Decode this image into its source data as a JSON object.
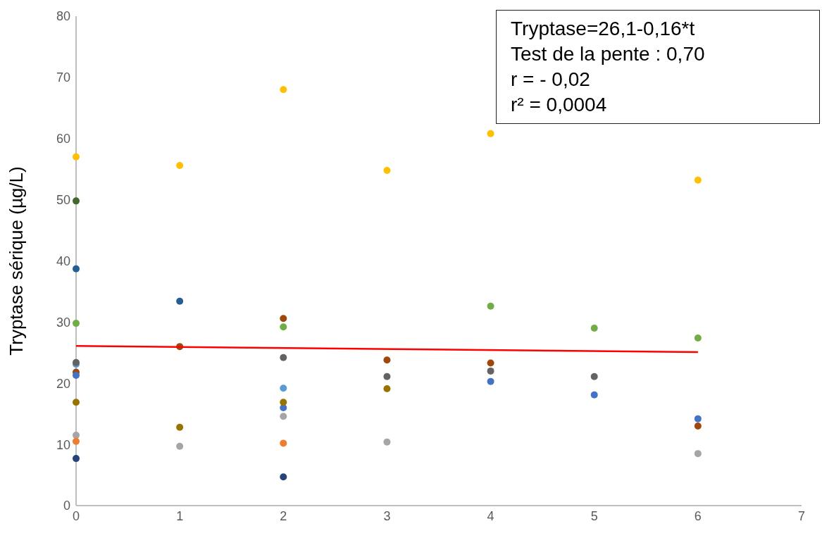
{
  "chart_data": {
    "type": "scatter",
    "ylabel": "Tryptase sérique (µg/L)",
    "xlim": [
      0,
      7
    ],
    "xticks": [
      0,
      1,
      2,
      3,
      4,
      5,
      6,
      7
    ],
    "ylim": [
      0,
      80
    ],
    "yticks": [
      0,
      10,
      20,
      30,
      40,
      50,
      60,
      70,
      80
    ],
    "grid": false,
    "marker": "circle",
    "annotations": [
      "Tryptase=26,1-0,16*t",
      "Test de la pente : 0,70",
      "r = - 0,02",
      "r² = 0,0004"
    ],
    "series": [
      {
        "color": "#ffc000",
        "x": [
          0,
          1,
          2,
          3,
          4,
          6
        ],
        "values": [
          57.0,
          55.6,
          68.0,
          54.8,
          60.8,
          53.2
        ]
      },
      {
        "color": "#43682b",
        "x": [
          0
        ],
        "values": [
          49.8
        ]
      },
      {
        "color": "#255e91",
        "x": [
          0,
          1
        ],
        "values": [
          38.7,
          33.4
        ]
      },
      {
        "color": "#70ad47",
        "x": [
          0,
          2,
          4,
          5,
          6
        ],
        "values": [
          29.8,
          29.2,
          32.6,
          29.0,
          27.4
        ]
      },
      {
        "color": "#5b9bd5",
        "x": [
          0,
          2
        ],
        "values": [
          23.1,
          19.2
        ]
      },
      {
        "color": "#636363",
        "x": [
          0,
          2,
          3,
          4,
          5
        ],
        "values": [
          23.4,
          24.2,
          21.1,
          22.0,
          21.1
        ]
      },
      {
        "color": "#9e480e",
        "x": [
          0,
          1,
          2,
          3,
          4,
          6
        ],
        "values": [
          21.8,
          26.0,
          30.6,
          23.8,
          23.3,
          13.0
        ]
      },
      {
        "color": "#4472c4",
        "x": [
          0,
          2,
          4,
          5,
          6
        ],
        "values": [
          21.3,
          16.0,
          20.3,
          18.1,
          14.2
        ]
      },
      {
        "color": "#997300",
        "x": [
          0,
          1,
          2,
          3
        ],
        "values": [
          16.9,
          12.8,
          16.9,
          19.1
        ]
      },
      {
        "color": "#a5a5a5",
        "x": [
          0,
          1,
          2,
          3,
          6
        ],
        "values": [
          11.5,
          9.7,
          14.6,
          10.4,
          8.5
        ]
      },
      {
        "color": "#ed7d31",
        "x": [
          0,
          2
        ],
        "values": [
          10.5,
          10.2
        ]
      },
      {
        "color": "#264478",
        "x": [
          0,
          2
        ],
        "values": [
          7.7,
          4.7
        ]
      },
      {
        "type": "line",
        "color": "#ff0000",
        "marker": "none",
        "x": [
          0,
          6
        ],
        "values": [
          26.1,
          25.1
        ]
      }
    ]
  }
}
